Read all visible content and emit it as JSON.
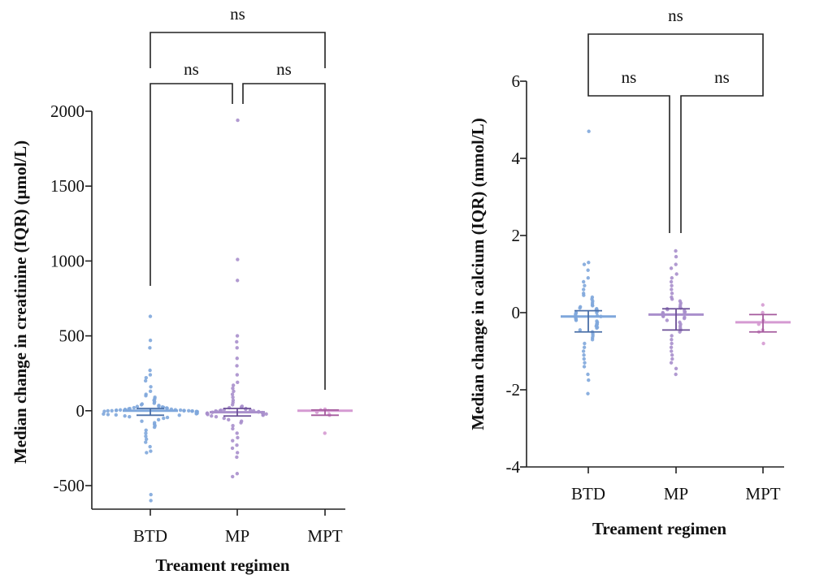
{
  "colors": {
    "BTD": "#7fa7dc",
    "MP": "#a98fcc",
    "MPT": "#d59ad2",
    "BTD_bar": "#4a6fa8",
    "MP_bar": "#6b4f96",
    "MPT_bar": "#a55a9d",
    "axis": "#222222",
    "bracket": "#222222"
  },
  "chart_data": [
    {
      "type": "scatter",
      "subtype": "beeswarm with median and IQR",
      "xlabel": "Treament regimen",
      "ylabel": "Median change in creatinine (IQR) (μmol/L)",
      "categories": [
        "BTD",
        "MP",
        "MPT"
      ],
      "ylim": [
        -650,
        2000
      ],
      "yticks": [
        -500,
        0,
        500,
        1000,
        1500,
        2000
      ],
      "ytick_labels": [
        "-500",
        "0",
        "500",
        "1000",
        "1500",
        "2000"
      ],
      "grid": false,
      "series": [
        {
          "category": "BTD",
          "median": 0,
          "q1": -30,
          "q3": 15,
          "values": [
            630,
            470,
            420,
            270,
            240,
            220,
            200,
            160,
            130,
            110,
            100,
            90,
            80,
            70,
            60,
            50,
            45,
            40,
            35,
            30,
            28,
            25,
            22,
            20,
            18,
            16,
            14,
            12,
            10,
            8,
            7,
            6,
            5,
            4,
            3,
            2,
            1,
            0,
            0,
            0,
            -1,
            -2,
            -3,
            -4,
            -5,
            -6,
            -8,
            -10,
            -12,
            -14,
            -16,
            -18,
            -20,
            -22,
            -25,
            -28,
            -30,
            -35,
            -40,
            -45,
            -50,
            -60,
            -70,
            -80,
            -90,
            -100,
            -110,
            -130,
            -150,
            -170,
            -190,
            -210,
            -240,
            -270,
            -280,
            -560,
            -600
          ]
        },
        {
          "category": "MP",
          "median": -10,
          "q1": -35,
          "q3": 15,
          "values": [
            1940,
            1010,
            870,
            500,
            460,
            420,
            350,
            300,
            240,
            190,
            170,
            150,
            130,
            110,
            90,
            70,
            55,
            40,
            30,
            25,
            20,
            15,
            10,
            8,
            5,
            3,
            0,
            0,
            -2,
            -4,
            -6,
            -8,
            -10,
            -12,
            -14,
            -16,
            -18,
            -20,
            -22,
            -25,
            -28,
            -30,
            -35,
            -40,
            -50,
            -60,
            -70,
            -80,
            -100,
            -120,
            -150,
            -180,
            -200,
            -230,
            -250,
            -280,
            -310,
            -420,
            -440
          ]
        },
        {
          "category": "MPT",
          "median": 0,
          "q1": -30,
          "q3": 5,
          "values": [
            10,
            5,
            0,
            -10,
            -25,
            -30,
            -150
          ]
        }
      ],
      "significance": [
        {
          "from": "BTD",
          "to": "MP",
          "label": "ns"
        },
        {
          "from": "MP",
          "to": "MPT",
          "label": "ns"
        },
        {
          "from": "BTD",
          "to": "MPT",
          "label": "ns"
        }
      ]
    },
    {
      "type": "scatter",
      "subtype": "beeswarm with median and IQR",
      "xlabel": "Treament regimen",
      "ylabel": "Median change in calcium (IQR) (mmol/L)",
      "categories": [
        "BTD",
        "MP",
        "MPT"
      ],
      "ylim": [
        -4,
        6
      ],
      "yticks": [
        -4,
        -2,
        0,
        2,
        4,
        6
      ],
      "ytick_labels": [
        "-4",
        "-2",
        "0",
        "2",
        "4",
        "6"
      ],
      "grid": false,
      "series": [
        {
          "category": "BTD",
          "median": -0.1,
          "q1": -0.5,
          "q3": 0.05,
          "values": [
            4.7,
            1.3,
            1.25,
            1.1,
            0.9,
            0.8,
            0.7,
            0.6,
            0.5,
            0.45,
            0.4,
            0.35,
            0.3,
            0.25,
            0.2,
            0.18,
            0.15,
            0.12,
            0.1,
            0.08,
            0.05,
            0.03,
            0.0,
            0.0,
            -0.02,
            -0.05,
            -0.08,
            -0.1,
            -0.1,
            -0.12,
            -0.15,
            -0.18,
            -0.2,
            -0.22,
            -0.25,
            -0.28,
            -0.3,
            -0.32,
            -0.35,
            -0.38,
            -0.4,
            -0.45,
            -0.5,
            -0.55,
            -0.6,
            -0.65,
            -0.7,
            -0.8,
            -0.9,
            -1.0,
            -1.1,
            -1.2,
            -1.3,
            -1.4,
            -1.6,
            -1.75,
            -2.1
          ]
        },
        {
          "category": "MP",
          "median": -0.05,
          "q1": -0.45,
          "q3": 0.1,
          "values": [
            1.6,
            1.45,
            1.25,
            1.15,
            1.0,
            0.9,
            0.8,
            0.7,
            0.6,
            0.5,
            0.4,
            0.35,
            0.3,
            0.25,
            0.2,
            0.15,
            0.12,
            0.1,
            0.08,
            0.05,
            0.02,
            0.0,
            0.0,
            -0.02,
            -0.05,
            -0.08,
            -0.1,
            -0.12,
            -0.15,
            -0.2,
            -0.25,
            -0.3,
            -0.35,
            -0.4,
            -0.45,
            -0.5,
            -0.6,
            -0.7,
            -0.8,
            -0.9,
            -1.0,
            -1.1,
            -1.2,
            -1.3,
            -1.45,
            -1.6
          ]
        },
        {
          "category": "MPT",
          "median": -0.25,
          "q1": -0.5,
          "q3": -0.05,
          "values": [
            0.2,
            0.0,
            -0.2,
            -0.3,
            -0.45,
            -0.5,
            -0.8
          ]
        }
      ],
      "significance": [
        {
          "from": "BTD",
          "to": "MP",
          "label": "ns"
        },
        {
          "from": "MP",
          "to": "MPT",
          "label": "ns"
        },
        {
          "from": "BTD",
          "to": "MPT",
          "label": "ns"
        }
      ]
    }
  ]
}
